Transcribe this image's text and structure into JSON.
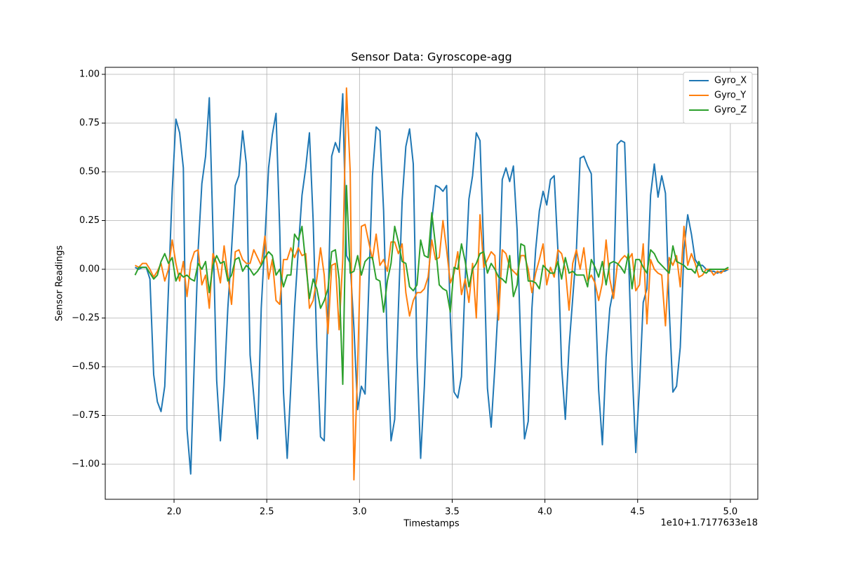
{
  "chart_data": {
    "type": "line",
    "title": "Sensor Data: Gyroscope-agg",
    "x_label": "Timestamps",
    "y_label": "Sensor Readings",
    "x_offset_label": "1e10+1.7177633e18",
    "x": [
      1.79,
      1.81,
      1.83,
      1.85,
      1.87,
      1.89,
      1.91,
      1.93,
      1.95,
      1.97,
      1.99,
      2.01,
      2.03,
      2.05,
      2.07,
      2.09,
      2.11,
      2.13,
      2.15,
      2.17,
      2.19,
      2.21,
      2.23,
      2.25,
      2.27,
      2.29,
      2.31,
      2.33,
      2.35,
      2.37,
      2.39,
      2.41,
      2.43,
      2.45,
      2.47,
      2.49,
      2.51,
      2.53,
      2.55,
      2.57,
      2.59,
      2.61,
      2.63,
      2.65,
      2.67,
      2.69,
      2.71,
      2.73,
      2.75,
      2.77,
      2.79,
      2.81,
      2.83,
      2.85,
      2.87,
      2.89,
      2.91,
      2.93,
      2.95,
      2.97,
      2.99,
      3.01,
      3.03,
      3.05,
      3.07,
      3.09,
      3.11,
      3.13,
      3.15,
      3.17,
      3.19,
      3.21,
      3.23,
      3.25,
      3.27,
      3.29,
      3.31,
      3.33,
      3.35,
      3.37,
      3.39,
      3.41,
      3.43,
      3.45,
      3.47,
      3.49,
      3.51,
      3.53,
      3.55,
      3.57,
      3.59,
      3.61,
      3.63,
      3.65,
      3.67,
      3.69,
      3.71,
      3.73,
      3.75,
      3.77,
      3.79,
      3.81,
      3.83,
      3.85,
      3.87,
      3.89,
      3.91,
      3.93,
      3.95,
      3.97,
      3.99,
      4.01,
      4.03,
      4.05,
      4.07,
      4.09,
      4.11,
      4.13,
      4.15,
      4.17,
      4.19,
      4.21,
      4.23,
      4.25,
      4.27,
      4.29,
      4.31,
      4.33,
      4.35,
      4.37,
      4.39,
      4.41,
      4.43,
      4.45,
      4.47,
      4.49,
      4.51,
      4.53,
      4.55,
      4.57,
      4.59,
      4.61,
      4.63,
      4.65,
      4.67,
      4.69,
      4.71,
      4.73,
      4.75,
      4.77,
      4.79,
      4.81,
      4.83,
      4.85,
      4.87,
      4.89,
      4.91,
      4.93,
      4.95,
      4.97,
      4.99
    ],
    "series": [
      {
        "name": "Gyro_X",
        "color": "#1f77b4",
        "values": [
          0.01,
          0.0,
          0.01,
          0.01,
          -0.05,
          -0.54,
          -0.68,
          -0.73,
          -0.6,
          -0.1,
          0.4,
          0.77,
          0.7,
          0.52,
          -0.82,
          -1.05,
          -0.45,
          0.1,
          0.44,
          0.58,
          0.88,
          0.2,
          -0.57,
          -0.88,
          -0.6,
          -0.2,
          0.1,
          0.43,
          0.48,
          0.71,
          0.54,
          -0.44,
          -0.65,
          -0.87,
          -0.2,
          0.15,
          0.52,
          0.69,
          0.8,
          0.2,
          -0.63,
          -0.97,
          -0.6,
          -0.2,
          0.1,
          0.38,
          0.52,
          0.7,
          0.25,
          -0.4,
          -0.86,
          -0.88,
          -0.2,
          0.58,
          0.65,
          0.6,
          0.9,
          0.07,
          0.03,
          -0.3,
          -0.72,
          -0.6,
          -0.64,
          -0.1,
          0.48,
          0.73,
          0.71,
          0.3,
          -0.4,
          -0.88,
          -0.77,
          -0.2,
          0.35,
          0.63,
          0.72,
          0.54,
          -0.45,
          -0.97,
          -0.6,
          -0.1,
          0.25,
          0.43,
          0.42,
          0.4,
          0.43,
          -0.25,
          -0.63,
          -0.66,
          -0.55,
          -0.05,
          0.36,
          0.48,
          0.7,
          0.66,
          0.1,
          -0.61,
          -0.81,
          -0.5,
          -0.15,
          0.46,
          0.52,
          0.45,
          0.53,
          0.2,
          -0.4,
          -0.87,
          -0.78,
          -0.2,
          0.1,
          0.3,
          0.4,
          0.33,
          0.46,
          0.48,
          0.1,
          -0.5,
          -0.77,
          -0.4,
          -0.15,
          0.1,
          0.57,
          0.58,
          0.53,
          0.49,
          -0.1,
          -0.62,
          -0.9,
          -0.45,
          -0.2,
          -0.1,
          0.64,
          0.66,
          0.65,
          0.1,
          -0.5,
          -0.94,
          -0.6,
          -0.17,
          -0.1,
          0.38,
          0.54,
          0.37,
          0.48,
          0.39,
          -0.2,
          -0.63,
          -0.6,
          -0.4,
          0.1,
          0.28,
          0.18,
          0.05,
          0.02,
          0.02,
          0.0,
          -0.01,
          -0.01,
          -0.02,
          -0.01,
          -0.01,
          0.0
        ]
      },
      {
        "name": "Gyro_Y",
        "color": "#ff7f0e",
        "values": [
          0.02,
          0.01,
          0.03,
          0.03,
          0.0,
          -0.04,
          -0.01,
          0.03,
          -0.06,
          0.0,
          0.15,
          0.03,
          -0.06,
          0.04,
          -0.14,
          0.03,
          0.09,
          0.1,
          -0.08,
          -0.03,
          -0.2,
          0.08,
          0.03,
          -0.07,
          0.12,
          -0.03,
          -0.18,
          0.09,
          0.1,
          0.05,
          0.03,
          0.03,
          0.1,
          0.06,
          0.02,
          0.17,
          -0.05,
          0.05,
          -0.16,
          -0.18,
          0.05,
          0.05,
          0.11,
          0.06,
          0.11,
          0.07,
          0.08,
          -0.2,
          -0.16,
          -0.05,
          0.11,
          -0.03,
          -0.33,
          0.02,
          0.03,
          -0.31,
          0.05,
          0.93,
          0.5,
          -1.08,
          -0.5,
          0.22,
          0.23,
          0.14,
          0.05,
          0.18,
          0.02,
          0.05,
          -0.01,
          0.14,
          0.14,
          0.08,
          0.13,
          -0.12,
          -0.24,
          -0.16,
          -0.12,
          -0.12,
          -0.1,
          -0.04,
          0.15,
          0.05,
          0.06,
          0.25,
          0.1,
          -0.07,
          -0.02,
          0.09,
          -0.13,
          -0.05,
          -0.17,
          0.03,
          -0.25,
          0.28,
          0.01,
          0.05,
          0.09,
          0.07,
          -0.26,
          0.1,
          0.08,
          0.01,
          -0.01,
          -0.03,
          0.07,
          0.07,
          0.0,
          -0.12,
          -0.02,
          0.05,
          0.13,
          -0.08,
          0.01,
          -0.04,
          0.1,
          0.08,
          0.0,
          -0.21,
          0.03,
          0.1,
          0.0,
          0.11,
          -0.06,
          -0.03,
          -0.07,
          -0.16,
          -0.07,
          0.15,
          -0.05,
          -0.15,
          0.02,
          0.05,
          0.07,
          0.05,
          0.08,
          -0.11,
          -0.08,
          0.13,
          -0.28,
          0.05,
          0.0,
          -0.02,
          -0.03,
          -0.29,
          0.06,
          0.02,
          0.07,
          -0.09,
          0.22,
          0.02,
          0.08,
          0.03,
          -0.04,
          -0.03,
          0.0,
          0.0,
          -0.03,
          -0.01,
          -0.02,
          0.0,
          0.0
        ]
      },
      {
        "name": "Gyro_Z",
        "color": "#2ca02c",
        "values": [
          -0.03,
          0.01,
          0.01,
          0.01,
          -0.02,
          -0.05,
          -0.03,
          0.04,
          0.08,
          0.03,
          0.06,
          -0.06,
          -0.02,
          -0.04,
          -0.03,
          -0.05,
          -0.06,
          0.03,
          0.0,
          0.04,
          -0.12,
          0.02,
          0.07,
          0.03,
          0.04,
          -0.06,
          -0.03,
          0.05,
          0.06,
          -0.01,
          0.02,
          0.0,
          -0.03,
          -0.01,
          0.02,
          0.06,
          0.09,
          0.07,
          -0.03,
          0.0,
          -0.09,
          -0.03,
          -0.03,
          0.18,
          0.15,
          0.22,
          0.03,
          -0.15,
          -0.05,
          -0.1,
          -0.2,
          -0.16,
          -0.1,
          0.09,
          0.1,
          -0.05,
          -0.59,
          0.43,
          -0.02,
          -0.01,
          0.07,
          -0.03,
          0.04,
          0.06,
          0.06,
          -0.05,
          -0.06,
          -0.22,
          -0.06,
          0.03,
          0.22,
          0.14,
          0.04,
          0.03,
          -0.09,
          -0.11,
          -0.08,
          0.15,
          0.07,
          0.06,
          0.29,
          0.12,
          -0.08,
          -0.1,
          -0.11,
          -0.22,
          0.01,
          0.0,
          0.13,
          0.04,
          -0.09,
          0.0,
          0.03,
          0.08,
          0.09,
          -0.02,
          0.03,
          0.0,
          -0.04,
          -0.05,
          -0.07,
          0.07,
          -0.14,
          -0.08,
          0.13,
          0.12,
          -0.06,
          -0.06,
          -0.07,
          -0.1,
          0.02,
          0.0,
          -0.02,
          -0.02,
          0.04,
          -0.05,
          0.06,
          -0.02,
          -0.01,
          -0.03,
          -0.03,
          -0.03,
          -0.09,
          0.05,
          0.01,
          -0.04,
          0.04,
          -0.08,
          0.03,
          0.04,
          0.03,
          0.01,
          -0.02,
          0.08,
          -0.1,
          0.05,
          0.05,
          0.01,
          -0.02,
          0.1,
          0.08,
          0.04,
          0.02,
          0.0,
          -0.02,
          0.12,
          0.04,
          0.03,
          0.02,
          0.0,
          0.0,
          -0.02,
          0.04,
          -0.01,
          -0.02,
          0.0,
          0.0,
          0.0,
          0.0,
          0.0,
          0.01
        ]
      }
    ],
    "xlim": [
      1.629,
      5.148
    ],
    "ylim": [
      -1.18,
      1.036
    ],
    "xticks": [
      {
        "value": 2,
        "label": "2.0"
      },
      2.5,
      {
        "value": 3,
        "label": "3.0"
      },
      3.5,
      {
        "value": 4,
        "label": "4.0"
      },
      4.5,
      {
        "value": 5,
        "label": "5.0"
      }
    ],
    "yticks": [
      {
        "value": -1,
        "label": "−1.00"
      },
      {
        "value": -0.75,
        "label": "−0.75"
      },
      {
        "value": -0.5,
        "label": "−0.50"
      },
      {
        "value": -0.25,
        "label": "−0.25"
      },
      {
        "value": 0,
        "label": "0.00"
      },
      {
        "value": 0.25,
        "label": "0.25"
      },
      {
        "value": 0.5,
        "label": "0.50"
      },
      {
        "value": 0.75,
        "label": "0.75"
      },
      {
        "value": 1,
        "label": "1.00"
      }
    ],
    "grid": true,
    "legend": "upper-right"
  }
}
